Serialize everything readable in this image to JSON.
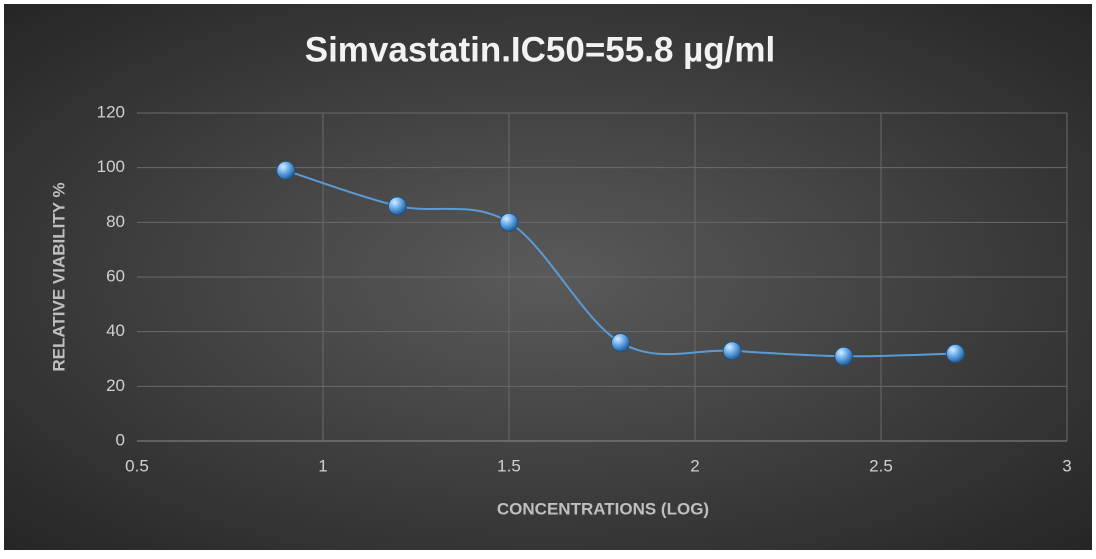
{
  "chart_data": {
    "type": "scatter",
    "title": "Simvastatin.IC50=55.8 µg/ml",
    "x_label": "CONCENTRATIONS (LOG)",
    "y_label": "RELATIVE VIABILITY %",
    "x": [
      0.9,
      1.2,
      1.5,
      1.8,
      2.1,
      2.4,
      2.7
    ],
    "series": [
      {
        "color": "#5b9bd5",
        "values": [
          99,
          86,
          80,
          36,
          33,
          31,
          32
        ]
      }
    ],
    "xlim": [
      0.5,
      3
    ],
    "xticks": [
      0.5,
      1,
      1.5,
      2,
      2.5,
      3
    ],
    "ylim": [
      0,
      120
    ],
    "yticks": [
      0,
      20,
      40,
      60,
      80,
      100,
      120
    ],
    "grid": true,
    "smooth": true
  }
}
